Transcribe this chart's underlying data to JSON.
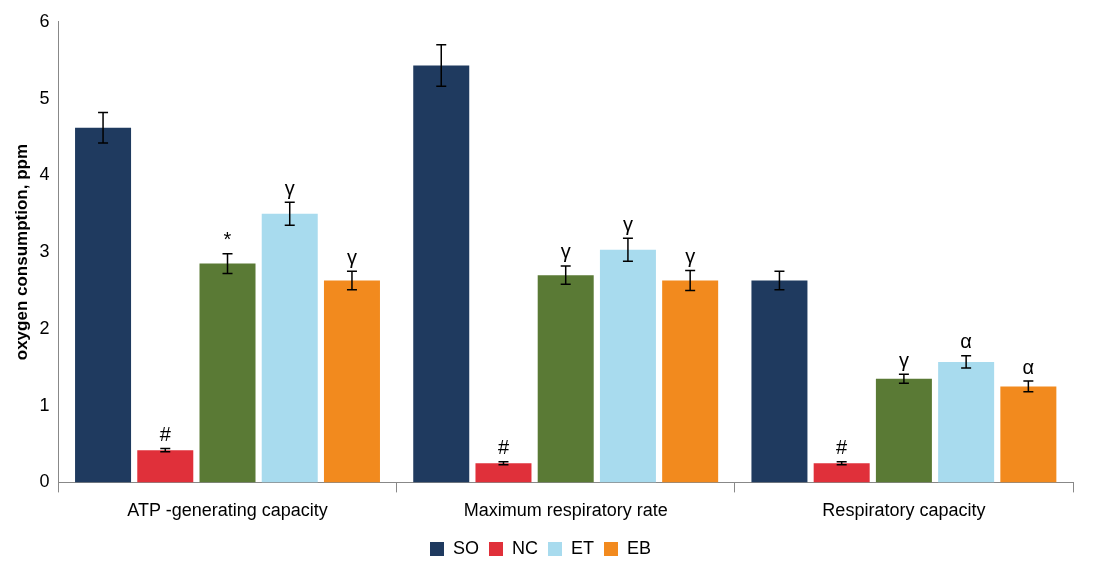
{
  "chart_data": {
    "type": "bar",
    "ylabel": "oxygen consumption, ppm",
    "categories": [
      "ATP -generating capacity",
      "Maximum respiratory rate",
      "Respiratory capacity"
    ],
    "series": [
      {
        "name": "SO",
        "color": "#1f3a5f",
        "values": [
          4.62,
          5.43,
          2.63
        ],
        "errors": [
          0.2,
          0.27,
          0.12
        ]
      },
      {
        "name": "NC",
        "color": "#e0303a",
        "values": [
          0.42,
          0.25,
          0.25
        ],
        "errors": [
          0.02,
          0.02,
          0.02
        ],
        "value_labels": [
          "#",
          "#",
          "#"
        ]
      },
      {
        "color": "#5a7a35",
        "values": [
          2.85,
          2.7,
          1.35
        ],
        "errors": [
          0.13,
          0.12,
          0.06
        ],
        "value_labels": [
          "*",
          "γ",
          "γ"
        ]
      },
      {
        "name": "ET",
        "color": "#a8dbee",
        "values": [
          3.5,
          3.03,
          1.57
        ],
        "errors": [
          0.15,
          0.15,
          0.08
        ],
        "value_labels": [
          "γ",
          "γ",
          "α"
        ]
      },
      {
        "name": "EB",
        "color": "#f28a1e",
        "values": [
          2.63,
          2.63,
          1.25
        ],
        "errors": [
          0.12,
          0.13,
          0.07
        ],
        "value_labels": [
          "γ",
          "γ",
          "α"
        ]
      }
    ],
    "ylim": [
      0,
      6
    ],
    "yticks": [
      0,
      1,
      2,
      3,
      4,
      5,
      6
    ],
    "grid": false,
    "legend": "bottom"
  }
}
